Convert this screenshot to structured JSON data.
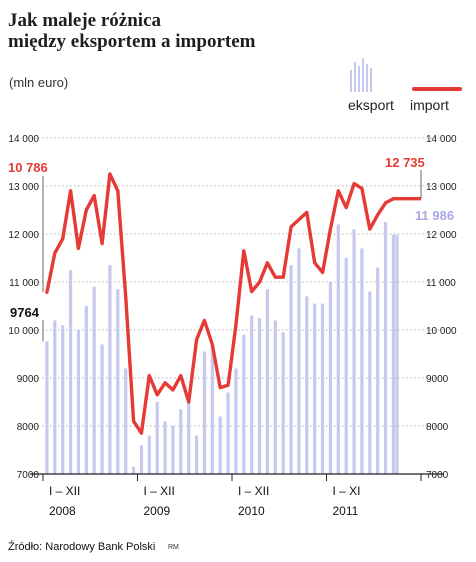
{
  "title_line1": "Jak maleje różnica",
  "title_line2": "między eksportem a importem",
  "subtitle": "(mln euro)",
  "legend": {
    "export_label": "eksport",
    "import_label": "import"
  },
  "source": "Źródło: Narodowy Bank Polski",
  "credit": "RM",
  "colors": {
    "export": "#c6c8ee",
    "import": "#e53a35",
    "annotation_export": "#a8a6e6"
  },
  "chart_data": {
    "type": "bar+line",
    "ylim": [
      7000,
      14000
    ],
    "yticks": [
      "7000",
      "8000",
      "9000",
      "10 000",
      "11 000",
      "12 000",
      "13 000",
      "14 000"
    ],
    "ytick_values": [
      7000,
      8000,
      9000,
      10000,
      11000,
      12000,
      13000,
      14000
    ],
    "periods": [
      {
        "range": "I – XII",
        "year": "2008"
      },
      {
        "range": "I – XII",
        "year": "2009"
      },
      {
        "range": "I – XII",
        "year": "2010"
      },
      {
        "range": "I – XI",
        "year": "2011"
      }
    ],
    "series": [
      {
        "name": "eksport",
        "type": "bar",
        "values": [
          9764,
          10200,
          10100,
          11250,
          10000,
          10500,
          10900,
          9700,
          11350,
          10850,
          9200,
          7150,
          7600,
          7800,
          8500,
          8100,
          8000,
          8350,
          8550,
          7800,
          9550,
          9650,
          8200,
          8700,
          9200,
          9900,
          10300,
          10250,
          10850,
          10200,
          9950,
          11350,
          11700,
          10700,
          10550,
          10550,
          11000,
          12200,
          11500,
          12100,
          11700,
          10800,
          11300,
          12250,
          11986
        ]
      },
      {
        "name": "import",
        "type": "line",
        "values": [
          10786,
          11600,
          11900,
          12900,
          11700,
          12500,
          12800,
          11800,
          13250,
          12900,
          10700,
          8100,
          7850,
          9050,
          8650,
          8900,
          8750,
          9050,
          8500,
          9800,
          10200,
          9700,
          8800,
          8850,
          10100,
          11650,
          10800,
          11000,
          11400,
          11100,
          11100,
          12150,
          12300,
          12450,
          11400,
          11200,
          12100,
          12900,
          12550,
          13050,
          12950,
          12100,
          12400,
          12650,
          12735
        ]
      }
    ],
    "annotations": {
      "import_first": "10 786",
      "export_first": "9764",
      "import_last": "12 735",
      "export_last": "11 986"
    }
  }
}
